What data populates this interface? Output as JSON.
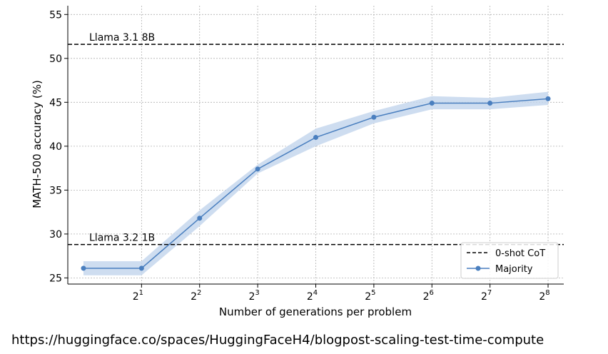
{
  "chart_data": {
    "type": "line",
    "xlabel": "Number of generations per problem",
    "ylabel": "MATH-500 accuracy (%)",
    "x_scale": "log2",
    "x": [
      1,
      2,
      4,
      8,
      16,
      32,
      64,
      128,
      256
    ],
    "x_tick_values": [
      2,
      4,
      8,
      16,
      32,
      64,
      128,
      256
    ],
    "x_tick_base": "2",
    "x_tick_exponents": [
      "1",
      "2",
      "3",
      "4",
      "5",
      "6",
      "7",
      "8"
    ],
    "ylim": [
      24.3,
      56
    ],
    "y_ticks": [
      "25",
      "30",
      "35",
      "40",
      "45",
      "50",
      "55"
    ],
    "grid": true,
    "series": [
      {
        "name": "Majority",
        "color": "#4a7fbf",
        "band_color": "#c5d7ed",
        "values": [
          26.1,
          26.1,
          31.8,
          37.4,
          41.0,
          43.3,
          44.9,
          44.9,
          45.4
        ],
        "lower": [
          25.3,
          25.3,
          30.9,
          36.9,
          40.0,
          42.6,
          44.2,
          44.2,
          44.7
        ],
        "upper": [
          26.9,
          26.9,
          32.7,
          37.9,
          42.0,
          44.0,
          45.7,
          45.5,
          46.2
        ]
      }
    ],
    "reference_lines": [
      {
        "name": "Llama 3.1 8B",
        "value": 51.6
      },
      {
        "name": "Llama 3.2 1B",
        "value": 28.8
      }
    ],
    "legend": {
      "position": "bottom-right",
      "entries": [
        "0-shot CoT",
        "Majority"
      ]
    }
  },
  "footer": {
    "url": "https://huggingface.co/spaces/HuggingFaceH4/blogpost-scaling-test-time-compute"
  }
}
